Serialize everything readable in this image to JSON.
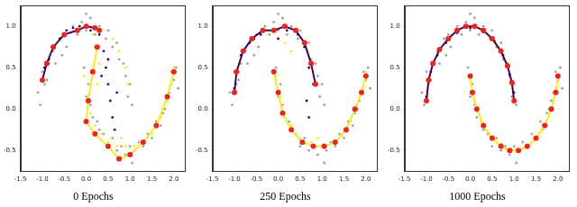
{
  "chart_data": [
    {
      "type": "scatter",
      "title": "0 Epochs",
      "grid": false,
      "xlim": [
        -1.5,
        2.25
      ],
      "ylim": [
        -0.75,
        1.25
      ],
      "xticks": [
        -1.5,
        {
          "value": -1.0,
          "label": "-1.0"
        },
        -0.5,
        {
          "value": 0.0,
          "label": "0.0"
        },
        0.5,
        {
          "value": 1.0,
          "label": "1.0"
        },
        1.5,
        {
          "value": 2.0,
          "label": "2.0"
        }
      ],
      "yticks": [
        -0.5,
        {
          "value": 0.0,
          "label": "0.0"
        },
        0.5,
        {
          "value": 1.0,
          "label": "1.0"
        }
      ],
      "series": [
        {
          "type": "scatter",
          "color": "#a0a0a0",
          "x": [
            -1.05,
            -0.95,
            -1.0,
            -0.85,
            -0.9,
            -0.75,
            -0.7,
            -0.6,
            -0.5,
            -0.45,
            -0.3,
            -0.2,
            -0.1,
            0.0,
            0.1,
            0.2,
            0.3,
            0.45,
            0.5,
            0.6,
            0.7,
            0.75,
            0.85,
            0.9,
            1.0,
            0.95,
            1.05,
            -1.1,
            0.0,
            -0.55,
            -0.05,
            0.05,
            0.0,
            0.1,
            0.15,
            0.3,
            0.4,
            0.5,
            0.6,
            0.7,
            0.8,
            0.9,
            1.0,
            1.1,
            1.2,
            1.3,
            1.4,
            1.5,
            1.6,
            1.7,
            1.8,
            1.85,
            1.9,
            2.0,
            2.05,
            1.95,
            1.75,
            0.25,
            1.05,
            2.1
          ],
          "values": [
            0.05,
            0.3,
            0.45,
            0.55,
            0.35,
            0.7,
            0.55,
            0.85,
            0.9,
            0.75,
            1.0,
            0.9,
            1.05,
            0.95,
            1.1,
            0.9,
            1.0,
            0.85,
            0.95,
            0.75,
            0.8,
            0.6,
            0.55,
            0.4,
            0.3,
            0.15,
            0.05,
            0.2,
            1.15,
            0.65,
            0.5,
            0.3,
            0.15,
            0.05,
            -0.1,
            -0.25,
            -0.3,
            -0.45,
            -0.35,
            -0.5,
            -0.45,
            -0.55,
            -0.45,
            -0.5,
            -0.4,
            -0.45,
            -0.3,
            -0.35,
            -0.15,
            -0.2,
            0.0,
            0.1,
            0.2,
            0.35,
            0.5,
            0.45,
            -0.05,
            -0.15,
            -0.65,
            0.25
          ]
        },
        {
          "type": "scatter",
          "color": "#440154",
          "x": [
            -1.0,
            -0.95,
            -0.85,
            -0.75,
            -0.6,
            -0.45,
            -0.3,
            -0.15,
            0.0,
            0.1,
            0.3,
            0.4,
            0.45,
            0.5,
            0.55,
            0.6,
            0.65,
            0.5,
            0.7,
            0.35
          ],
          "values": [
            0.35,
            0.5,
            0.6,
            0.75,
            0.85,
            0.95,
            0.98,
            1.0,
            1.0,
            0.95,
            0.9,
            0.7,
            0.5,
            0.3,
            0.1,
            -0.1,
            -0.25,
            0.6,
            0.2,
            0.4
          ]
        },
        {
          "type": "scatter",
          "color": "#fde725",
          "x": [
            0.15,
            0.2,
            0.3,
            0.25,
            0.6,
            0.75,
            0.9,
            0.95,
            -0.05,
            0.0,
            0.1,
            0.2,
            0.35,
            0.5,
            0.7,
            0.9,
            1.1,
            1.3,
            1.5,
            1.7,
            1.85,
            1.95,
            2.0,
            0.8
          ],
          "values": [
            0.9,
            0.75,
            0.55,
            0.3,
            0.85,
            0.7,
            0.5,
            0.3,
            0.4,
            0.1,
            -0.05,
            -0.2,
            -0.3,
            -0.4,
            -0.45,
            -0.45,
            -0.45,
            -0.4,
            -0.3,
            -0.1,
            0.1,
            0.3,
            0.5,
            -0.35
          ]
        },
        {
          "type": "line",
          "color": "#440154",
          "marker": "circle",
          "x": [
            -1.0,
            -0.9,
            -0.75,
            -0.5,
            -0.2,
            0.0,
            0.2,
            0.3
          ],
          "values": [
            0.35,
            0.55,
            0.75,
            0.9,
            0.95,
            1.0,
            0.98,
            0.95
          ]
        },
        {
          "type": "line",
          "color": "#fde725",
          "marker": "circle",
          "x": [
            0.25,
            0.15,
            0.05,
            0.0,
            0.2,
            0.5,
            0.75,
            1.0,
            1.3,
            1.6,
            1.85,
            2.0
          ],
          "values": [
            0.75,
            0.45,
            0.1,
            -0.15,
            -0.3,
            -0.45,
            -0.6,
            -0.55,
            -0.4,
            -0.2,
            0.15,
            0.45
          ]
        }
      ]
    },
    {
      "type": "scatter",
      "title": "250 Epochs",
      "grid": false,
      "xlim": [
        -1.5,
        2.25
      ],
      "ylim": [
        -0.75,
        1.25
      ],
      "xticks": [
        -1.5,
        {
          "value": -1.0,
          "label": "-1.0"
        },
        -0.5,
        {
          "value": 0.0,
          "label": "0.0"
        },
        0.5,
        {
          "value": 1.0,
          "label": "1.0"
        },
        1.5,
        {
          "value": 2.0,
          "label": "2.0"
        }
      ],
      "yticks": [
        -0.5,
        {
          "value": 0.0,
          "label": "0.0"
        },
        0.5,
        {
          "value": 1.0,
          "label": "1.0"
        }
      ],
      "series": [
        {
          "type": "scatter",
          "color": "#a0a0a0",
          "x": [
            -1.05,
            -0.95,
            -1.0,
            -0.85,
            -0.9,
            -0.75,
            -0.7,
            -0.6,
            -0.5,
            -0.45,
            -0.3,
            -0.2,
            -0.1,
            0.0,
            0.1,
            0.2,
            0.3,
            0.45,
            0.5,
            0.6,
            0.7,
            0.75,
            0.85,
            0.9,
            1.0,
            0.95,
            1.05,
            -1.1,
            0.0,
            -0.55,
            -0.05,
            0.05,
            0.0,
            0.1,
            0.15,
            0.3,
            0.4,
            0.5,
            0.6,
            0.7,
            0.8,
            0.9,
            1.0,
            1.1,
            1.2,
            1.3,
            1.4,
            1.5,
            1.6,
            1.7,
            1.8,
            1.85,
            1.9,
            2.0,
            2.05,
            1.95,
            1.75,
            0.25,
            1.05,
            2.1
          ],
          "values": [
            0.05,
            0.3,
            0.45,
            0.55,
            0.35,
            0.7,
            0.55,
            0.85,
            0.9,
            0.75,
            1.0,
            0.9,
            1.05,
            0.95,
            1.1,
            0.9,
            1.0,
            0.85,
            0.95,
            0.75,
            0.8,
            0.6,
            0.55,
            0.4,
            0.3,
            0.15,
            0.05,
            0.2,
            1.15,
            0.65,
            0.5,
            0.3,
            0.15,
            0.05,
            -0.1,
            -0.25,
            -0.3,
            -0.45,
            -0.35,
            -0.5,
            -0.45,
            -0.55,
            -0.45,
            -0.5,
            -0.4,
            -0.45,
            -0.3,
            -0.35,
            -0.15,
            -0.2,
            0.0,
            0.1,
            0.2,
            0.35,
            0.5,
            0.45,
            -0.05,
            -0.15,
            -0.65,
            0.25
          ]
        },
        {
          "type": "scatter",
          "color": "#440154",
          "x": [
            -1.0,
            -0.95,
            -0.85,
            -0.65,
            -0.4,
            -0.1,
            0.2,
            0.45,
            0.6,
            0.7,
            0.8,
            0.65,
            0.7,
            0.0,
            -0.55
          ],
          "values": [
            0.25,
            0.45,
            0.65,
            0.8,
            0.9,
            0.95,
            0.95,
            0.9,
            0.75,
            0.5,
            0.3,
            0.1,
            -0.1,
            0.85,
            0.85
          ]
        },
        {
          "type": "scatter",
          "color": "#fde725",
          "x": [
            0.15,
            0.3,
            -0.05,
            0.05,
            0.15,
            0.3,
            0.5,
            0.75,
            1.0,
            1.2,
            1.45,
            1.65,
            1.8,
            1.95,
            2.0,
            0.9
          ],
          "values": [
            0.8,
            0.7,
            0.4,
            0.15,
            -0.05,
            -0.2,
            -0.35,
            -0.4,
            -0.45,
            -0.42,
            -0.32,
            -0.15,
            0.05,
            0.25,
            0.45,
            -0.35
          ]
        },
        {
          "type": "line",
          "color": "#440154",
          "marker": "circle",
          "x": [
            -1.0,
            -0.95,
            -0.8,
            -0.6,
            -0.35,
            -0.1,
            0.15,
            0.4,
            0.6,
            0.75,
            0.85
          ],
          "values": [
            0.2,
            0.45,
            0.7,
            0.85,
            0.95,
            0.95,
            1.0,
            0.95,
            0.8,
            0.55,
            0.3
          ]
        },
        {
          "type": "line",
          "color": "#fde725",
          "marker": "circle",
          "x": [
            -0.1,
            0.0,
            0.1,
            0.3,
            0.55,
            0.8,
            1.05,
            1.3,
            1.55,
            1.75,
            1.9,
            2.0
          ],
          "values": [
            0.45,
            0.2,
            -0.05,
            -0.25,
            -0.4,
            -0.45,
            -0.45,
            -0.4,
            -0.25,
            0.0,
            0.2,
            0.4
          ]
        }
      ]
    },
    {
      "type": "scatter",
      "title": "1000 Epochs",
      "grid": false,
      "xlim": [
        -1.5,
        2.25
      ],
      "ylim": [
        -0.75,
        1.25
      ],
      "xticks": [
        -1.5,
        {
          "value": -1.0,
          "label": "-1.0"
        },
        -0.5,
        {
          "value": 0.0,
          "label": "0.0"
        },
        0.5,
        {
          "value": 1.0,
          "label": "1.0"
        },
        1.5,
        {
          "value": 2.0,
          "label": "2.0"
        }
      ],
      "yticks": [
        -0.5,
        {
          "value": 0.0,
          "label": "0.0"
        },
        0.5,
        {
          "value": 1.0,
          "label": "1.0"
        }
      ],
      "series": [
        {
          "type": "scatter",
          "color": "#a0a0a0",
          "x": [
            -1.05,
            -0.95,
            -1.0,
            -0.85,
            -0.9,
            -0.75,
            -0.7,
            -0.6,
            -0.5,
            -0.45,
            -0.3,
            -0.2,
            -0.1,
            0.0,
            0.1,
            0.2,
            0.3,
            0.45,
            0.5,
            0.6,
            0.7,
            0.75,
            0.85,
            0.9,
            1.0,
            0.95,
            1.05,
            -1.1,
            0.0,
            -0.55,
            -0.05,
            0.05,
            0.0,
            0.1,
            0.15,
            0.3,
            0.4,
            0.5,
            0.6,
            0.7,
            0.8,
            0.9,
            1.0,
            1.1,
            1.2,
            1.3,
            1.4,
            1.5,
            1.6,
            1.7,
            1.8,
            1.85,
            1.9,
            2.0,
            2.05,
            1.95,
            1.75,
            0.25,
            1.05,
            2.1
          ],
          "values": [
            0.05,
            0.3,
            0.45,
            0.55,
            0.35,
            0.7,
            0.55,
            0.85,
            0.9,
            0.75,
            1.0,
            0.9,
            1.05,
            0.95,
            1.1,
            0.9,
            1.0,
            0.85,
            0.95,
            0.75,
            0.8,
            0.6,
            0.55,
            0.4,
            0.3,
            0.15,
            0.05,
            0.2,
            1.15,
            0.65,
            0.5,
            0.3,
            0.15,
            0.05,
            -0.1,
            -0.25,
            -0.3,
            -0.45,
            -0.35,
            -0.5,
            -0.45,
            -0.55,
            -0.45,
            -0.5,
            -0.4,
            -0.45,
            -0.3,
            -0.35,
            -0.15,
            -0.2,
            0.0,
            0.1,
            0.2,
            0.35,
            0.5,
            0.45,
            -0.05,
            -0.15,
            -0.65,
            0.25
          ]
        },
        {
          "type": "scatter",
          "color": "#440154",
          "x": [
            -1.0,
            -0.9,
            -0.75,
            -0.55,
            -0.3,
            0.0,
            0.3,
            0.55,
            0.75,
            0.9,
            1.0
          ],
          "values": [
            0.15,
            0.45,
            0.65,
            0.8,
            0.92,
            0.98,
            0.93,
            0.82,
            0.65,
            0.42,
            0.2
          ]
        },
        {
          "type": "scatter",
          "color": "#fde725",
          "x": [
            0.0,
            0.1,
            0.25,
            0.45,
            0.7,
            0.95,
            1.2,
            1.45,
            1.65,
            1.85,
            1.97
          ],
          "values": [
            0.35,
            0.1,
            -0.15,
            -0.32,
            -0.42,
            -0.48,
            -0.47,
            -0.38,
            -0.25,
            -0.02,
            0.25
          ]
        },
        {
          "type": "line",
          "color": "#440154",
          "marker": "circle",
          "x": [
            -1.0,
            -0.95,
            -0.85,
            -0.7,
            -0.5,
            -0.3,
            -0.1,
            0.1,
            0.3,
            0.5,
            0.7,
            0.85,
            0.95,
            1.0
          ],
          "values": [
            0.1,
            0.35,
            0.55,
            0.72,
            0.85,
            0.95,
            1.0,
            1.0,
            0.95,
            0.85,
            0.7,
            0.52,
            0.32,
            0.1
          ]
        },
        {
          "type": "line",
          "color": "#fde725",
          "marker": "circle",
          "x": [
            0.0,
            0.05,
            0.15,
            0.3,
            0.5,
            0.7,
            0.9,
            1.1,
            1.3,
            1.5,
            1.7,
            1.85,
            1.95,
            2.0
          ],
          "values": [
            0.4,
            0.2,
            0.0,
            -0.2,
            -0.35,
            -0.45,
            -0.5,
            -0.5,
            -0.45,
            -0.35,
            -0.2,
            0.0,
            0.2,
            0.4
          ]
        }
      ]
    }
  ]
}
